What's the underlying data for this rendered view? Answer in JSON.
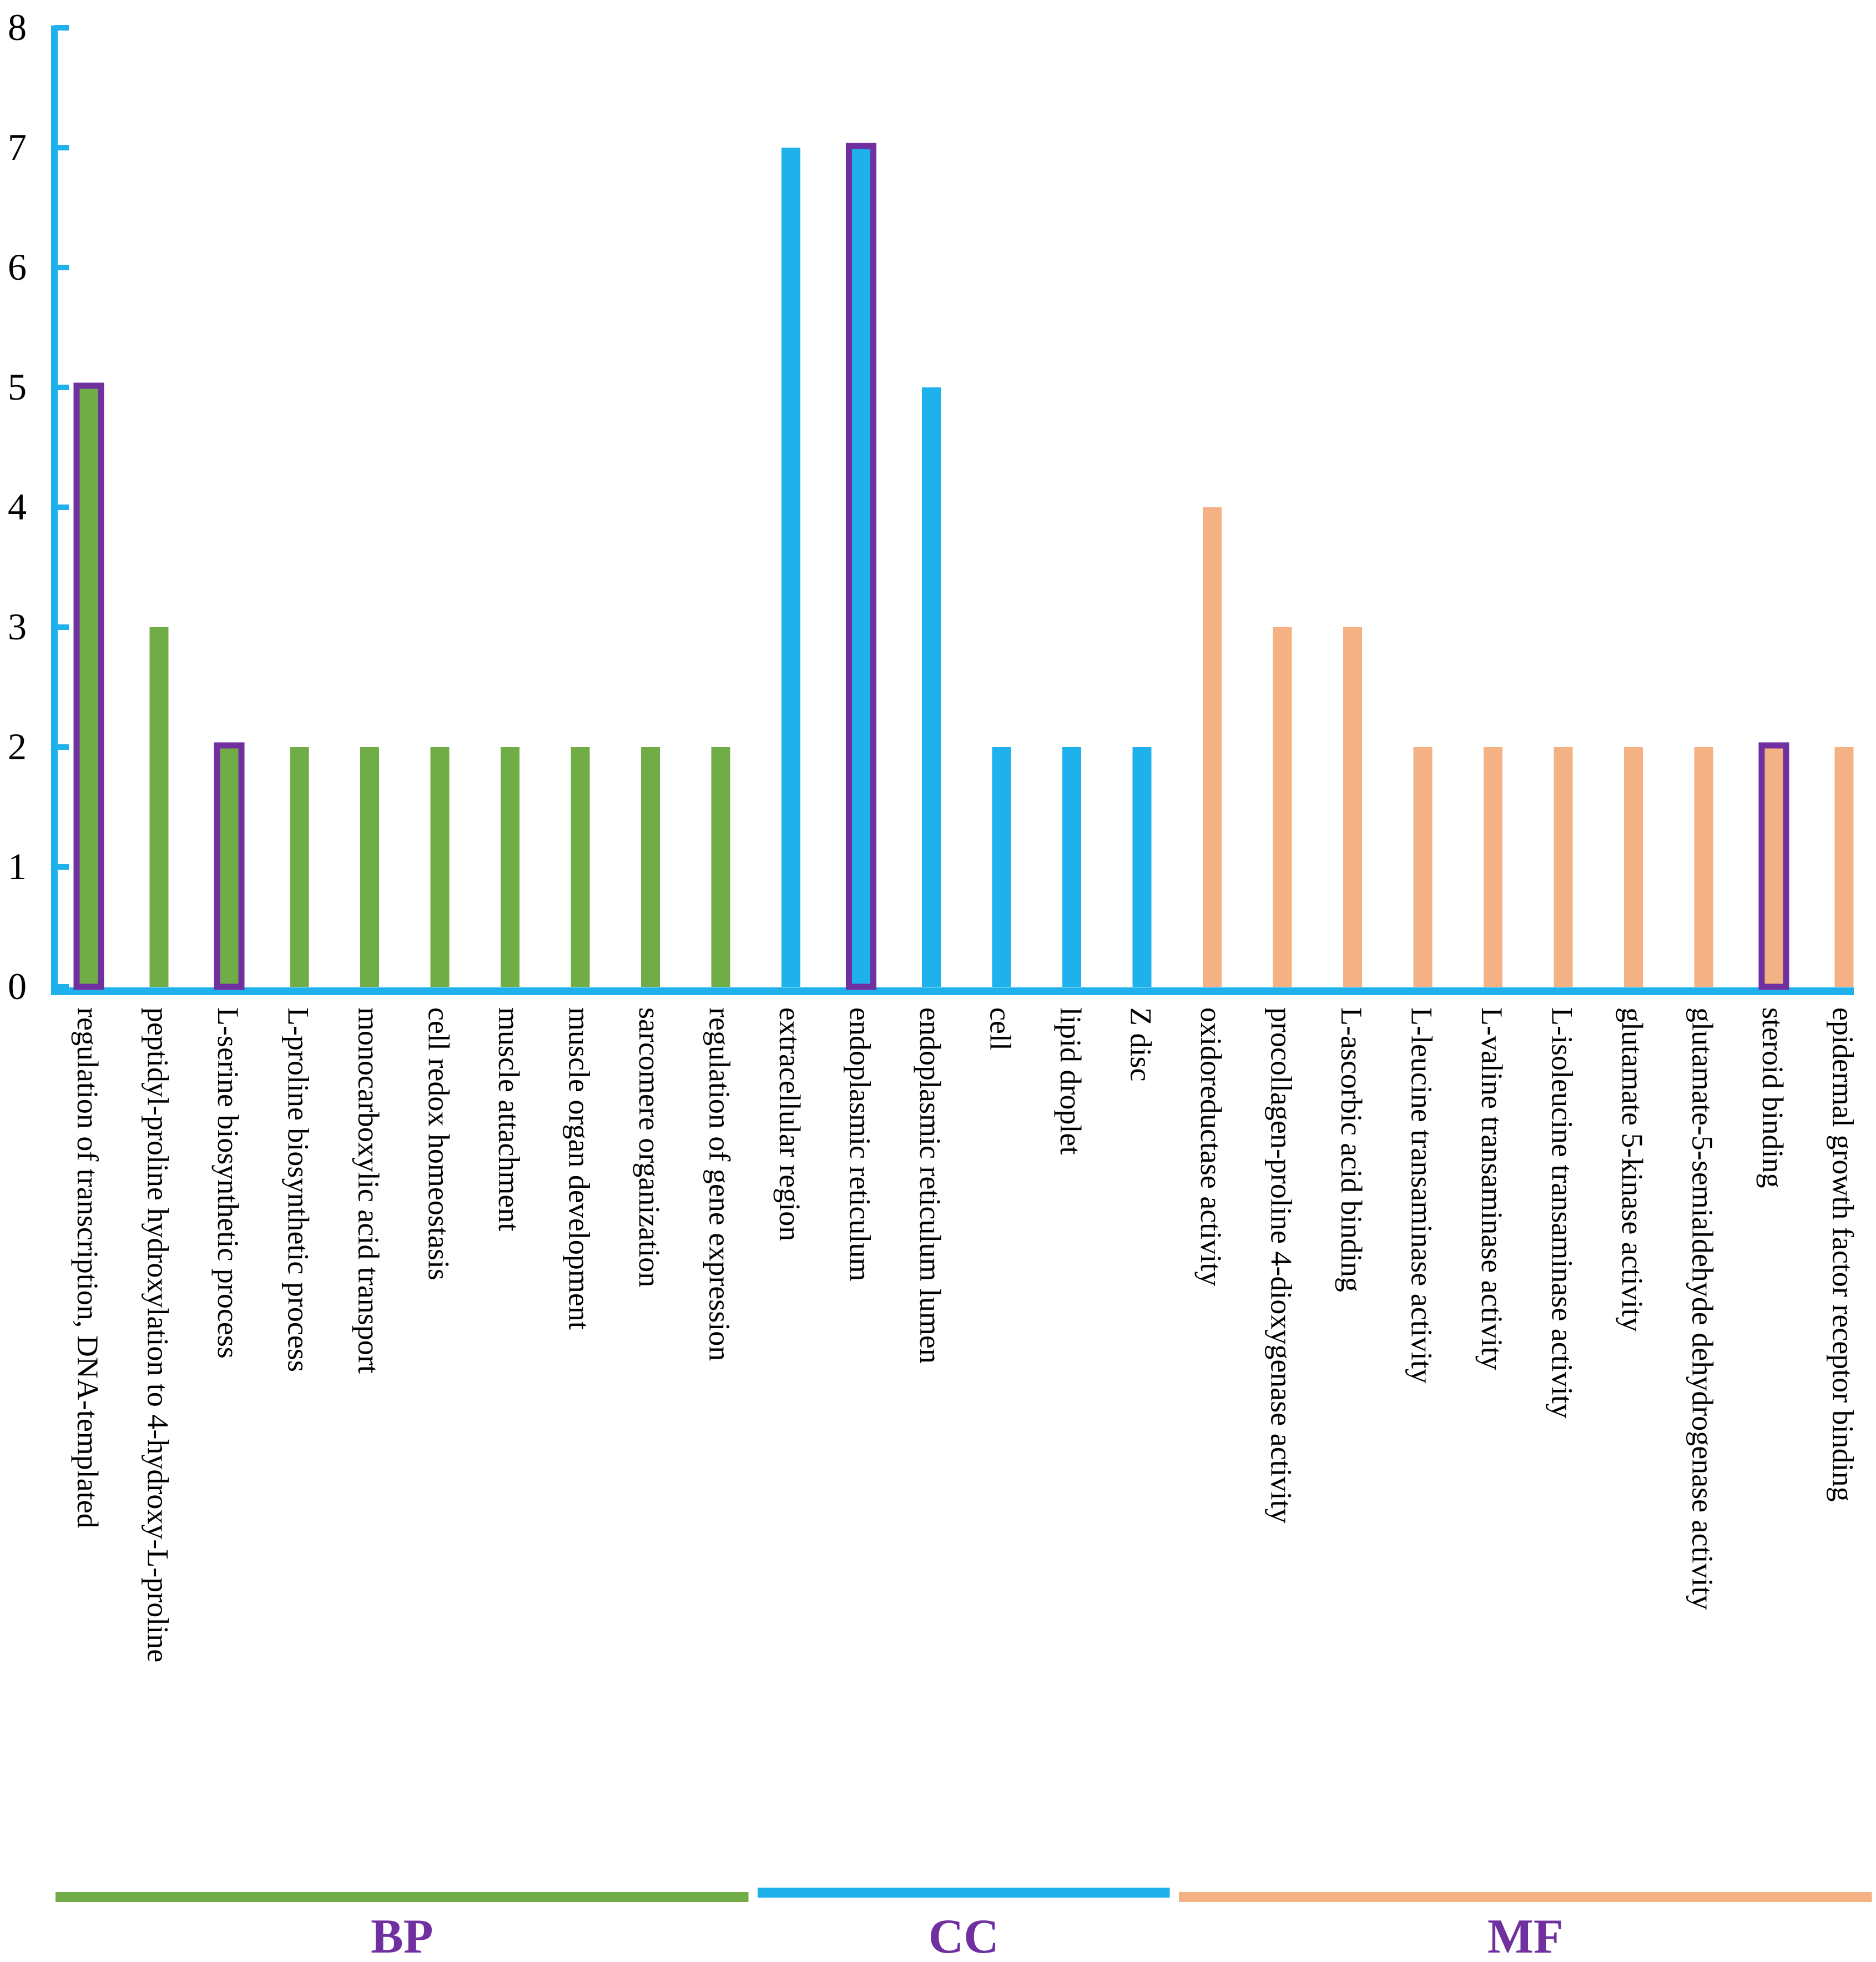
{
  "chart_data": {
    "type": "bar",
    "ylim": [
      0,
      8
    ],
    "y_ticks": [
      "0",
      "1",
      "2",
      "3",
      "4",
      "5",
      "6",
      "7",
      "8"
    ],
    "grid": false,
    "colors": {
      "axis": "#1EB1EC",
      "highlight": "#7030A0",
      "BP": "#70AD47",
      "CC": "#1EB1EC",
      "MF": "#F4B183"
    },
    "categories": [
      "regulation of transcription, DNA-templated",
      "peptidyl-proline hydroxylation to 4-hydroxy-L-proline",
      "L-serine biosynthetic process",
      "L-proline biosynthetic process",
      "monocarboxylic acid transport",
      "cell redox homeostasis",
      "muscle attachment",
      "muscle organ development",
      "sarcomere organization",
      "regulation of gene expression",
      "extracellular region",
      "endoplasmic reticulum",
      "endoplasmic reticulum lumen",
      "cell",
      "lipid droplet",
      "Z disc",
      "oxidoreductase activity",
      "procollagen-proline 4-dioxygenase activity",
      "L-ascorbic acid binding",
      "L-leucine transaminase activity",
      "L-valine transaminase activity",
      "L-isoleucine transaminase activity",
      "glutamate 5-kinase activity",
      "glutamate-5-semialdehyde dehydrogenase activity",
      "steroid binding",
      "epidermal growth factor receptor binding"
    ],
    "values": [
      5,
      3,
      2,
      2,
      2,
      2,
      2,
      2,
      2,
      2,
      7,
      7,
      5,
      2,
      2,
      2,
      4,
      3,
      3,
      2,
      2,
      2,
      2,
      2,
      2,
      2
    ],
    "bar_group": [
      "BP",
      "BP",
      "BP",
      "BP",
      "BP",
      "BP",
      "BP",
      "BP",
      "BP",
      "BP",
      "CC",
      "CC",
      "CC",
      "CC",
      "CC",
      "CC",
      "MF",
      "MF",
      "MF",
      "MF",
      "MF",
      "MF",
      "MF",
      "MF",
      "MF",
      "MF"
    ],
    "highlighted": [
      true,
      false,
      true,
      false,
      false,
      false,
      false,
      false,
      false,
      false,
      false,
      true,
      false,
      false,
      false,
      false,
      false,
      false,
      false,
      false,
      false,
      false,
      false,
      false,
      true,
      false
    ],
    "groups": [
      {
        "name": "BP",
        "start": 0,
        "end": 9
      },
      {
        "name": "CC",
        "start": 10,
        "end": 15
      },
      {
        "name": "MF",
        "start": 16,
        "end": 25
      }
    ]
  }
}
